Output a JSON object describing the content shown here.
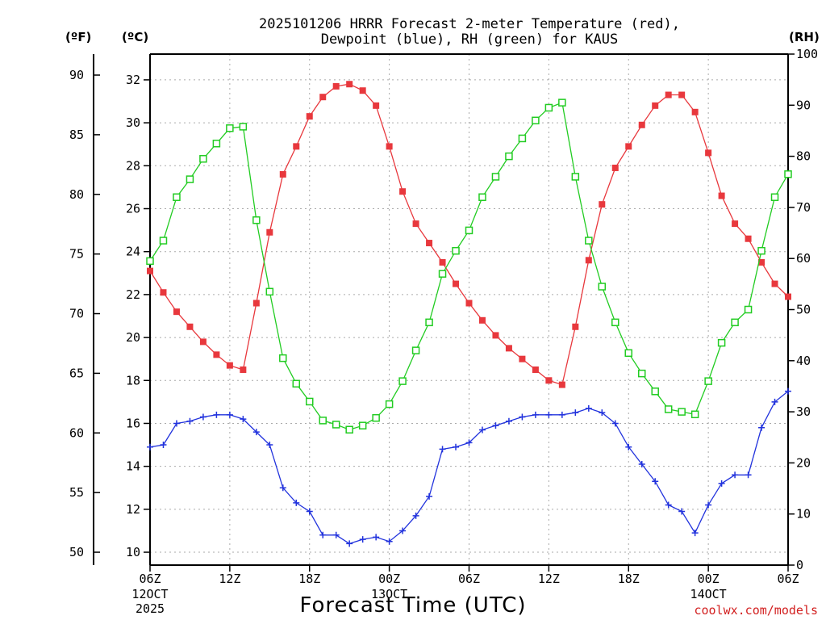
{
  "chart_data": {
    "type": "line",
    "title_line1": "2025101206 HRRR Forecast 2-meter Temperature (red),",
    "title_line2": "Dewpoint (blue), RH (green) for KAUS",
    "units": {
      "fahrenheit": "(ºF)",
      "celsius": "(ºC)",
      "rh": "(RH)"
    },
    "xlabel": "Forecast Time (UTC)",
    "watermark": "coolwx.com/models",
    "x_hours": [
      0,
      1,
      2,
      3,
      4,
      5,
      6,
      7,
      8,
      9,
      10,
      11,
      12,
      13,
      14,
      15,
      16,
      17,
      18,
      19,
      20,
      21,
      22,
      23,
      24,
      25,
      26,
      27,
      28,
      29,
      30,
      31,
      32,
      33,
      34,
      35,
      36,
      37,
      38,
      39,
      40,
      41,
      42,
      43,
      44,
      45,
      46,
      47,
      48
    ],
    "xlim": [
      0,
      48
    ],
    "x_ticks": [
      {
        "hour": 0,
        "label": "06Z",
        "date": "12OCT",
        "year": "2025"
      },
      {
        "hour": 6,
        "label": "12Z"
      },
      {
        "hour": 12,
        "label": "18Z"
      },
      {
        "hour": 18,
        "label": "00Z",
        "date": "13OCT"
      },
      {
        "hour": 24,
        "label": "06Z"
      },
      {
        "hour": 30,
        "label": "12Z"
      },
      {
        "hour": 36,
        "label": "18Z"
      },
      {
        "hour": 42,
        "label": "00Z",
        "date": "14OCT"
      },
      {
        "hour": 48,
        "label": "06Z"
      }
    ],
    "celsius_ticks": [
      10,
      12,
      14,
      16,
      18,
      20,
      22,
      24,
      26,
      28,
      30,
      32
    ],
    "fahrenheit_ticks": [
      50,
      55,
      60,
      65,
      70,
      75,
      80,
      85,
      90
    ],
    "rh_ticks": [
      0,
      10,
      20,
      30,
      40,
      50,
      60,
      70,
      80,
      90,
      100
    ],
    "ylim_celsius": [
      9.4,
      33.2
    ],
    "ylim_rh": [
      0,
      100
    ],
    "grid": true,
    "series": [
      {
        "name": "Temperature",
        "axis": "celsius",
        "color": "#e8383d",
        "marker": "filled-square",
        "values": [
          23.1,
          22.1,
          21.2,
          20.5,
          19.8,
          19.2,
          18.7,
          18.5,
          21.6,
          24.9,
          27.6,
          28.9,
          30.3,
          31.2,
          31.7,
          31.8,
          31.5,
          30.8,
          28.9,
          26.8,
          25.3,
          24.4,
          23.5,
          22.5,
          21.6,
          20.8,
          20.1,
          19.5,
          19.0,
          18.5,
          18.0,
          17.8,
          20.5,
          23.6,
          26.2,
          27.9,
          28.9,
          29.9,
          30.8,
          31.3,
          31.3,
          30.5,
          28.6,
          26.6,
          25.3,
          24.6,
          23.5,
          22.5,
          21.9
        ]
      },
      {
        "name": "Dewpoint",
        "axis": "celsius",
        "color": "#2233dd",
        "marker": "plus",
        "values": [
          14.9,
          15.0,
          16.0,
          16.1,
          16.3,
          16.4,
          16.4,
          16.2,
          15.6,
          15.0,
          13.0,
          12.3,
          11.9,
          10.8,
          10.8,
          10.4,
          10.6,
          10.7,
          10.5,
          11.0,
          11.7,
          12.6,
          14.8,
          14.9,
          15.1,
          15.7,
          15.9,
          16.1,
          16.3,
          16.4,
          16.4,
          16.4,
          16.5,
          16.7,
          16.5,
          16.0,
          14.9,
          14.1,
          13.3,
          12.2,
          11.9,
          10.9,
          12.2,
          13.2,
          13.6,
          13.6,
          15.8,
          17.0,
          17.5
        ]
      },
      {
        "name": "RH",
        "axis": "rh",
        "color": "#22cc22",
        "marker": "open-square",
        "values": [
          59.5,
          63.5,
          72.0,
          75.5,
          79.5,
          82.5,
          85.5,
          85.8,
          67.5,
          53.5,
          40.5,
          35.5,
          32.0,
          28.3,
          27.5,
          26.5,
          27.3,
          28.8,
          31.5,
          36.0,
          42.0,
          47.5,
          57.0,
          61.5,
          65.5,
          72.0,
          76.0,
          80.0,
          83.5,
          87.0,
          89.5,
          90.5,
          76.0,
          63.5,
          54.5,
          47.5,
          41.5,
          37.5,
          34.0,
          30.5,
          30.0,
          29.5,
          36.0,
          43.5,
          47.5,
          50.0,
          61.5,
          72.0,
          76.5
        ]
      }
    ]
  }
}
